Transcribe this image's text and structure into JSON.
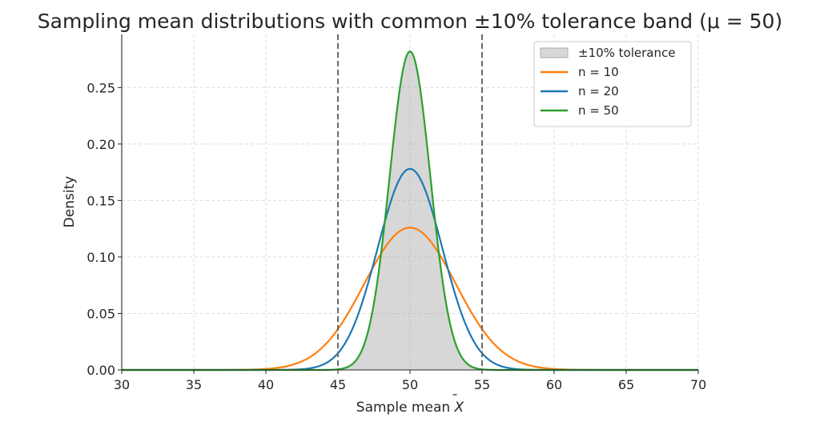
{
  "chart_data": {
    "type": "line",
    "title": "Sampling mean distributions with common ±10% tolerance band (μ = 50)",
    "xlabel_prefix": "Sample mean ",
    "xlabel_symbol": "X",
    "xlabel_symbol_accent": "¯",
    "ylabel": "Density",
    "xlim": [
      30,
      70
    ],
    "ylim": [
      0,
      0.297
    ],
    "xticks": [
      "30",
      "35",
      "40",
      "45",
      "50",
      "55",
      "60",
      "65",
      "70"
    ],
    "yticks": [
      "0.00",
      "0.05",
      "0.10",
      "0.15",
      "0.20",
      "0.25"
    ],
    "grid": true,
    "legend_position": "top-right",
    "mu": 50,
    "tolerance_band": {
      "label": "±10% tolerance",
      "lower": 45,
      "upper": 55,
      "fill_color": "#a6a6a6",
      "line_color": "#6a6a6a",
      "fill_series": "n = 50"
    },
    "series": [
      {
        "name": "n = 10",
        "color": "#ff7f0e",
        "mean": 50,
        "peak_density": 0.126
      },
      {
        "name": "n = 20",
        "color": "#1f77b4",
        "mean": 50,
        "peak_density": 0.178
      },
      {
        "name": "n = 50",
        "color": "#2ca02c",
        "mean": 50,
        "peak_density": 0.282
      }
    ]
  }
}
